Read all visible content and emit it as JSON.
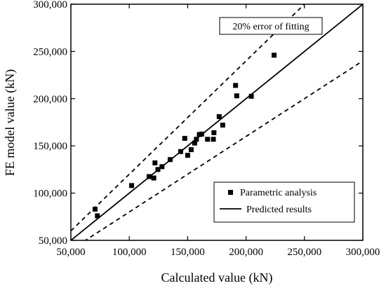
{
  "chart_data": {
    "type": "scatter",
    "xlabel": "Calculated value (kN)",
    "ylabel": "FE model value (kN)",
    "xlim": [
      50000,
      300000
    ],
    "ylim": [
      50000,
      300000
    ],
    "x_ticks": [
      50000,
      100000,
      150000,
      200000,
      250000,
      300000
    ],
    "y_ticks": [
      50000,
      100000,
      150000,
      200000,
      250000,
      300000
    ],
    "x_tick_labels": [
      "50,000",
      "100,000",
      "150,000",
      "200,000",
      "250,000",
      "300,000"
    ],
    "y_tick_labels": [
      "50,000",
      "100,000",
      "150,000",
      "200,000",
      "250,000",
      "300,000"
    ],
    "grid": false,
    "legend_position": "bottom-right",
    "annotation": "20% error of fitting",
    "series": [
      {
        "name": "Parametric analysis",
        "kind": "points",
        "marker": "square",
        "color": "#000000",
        "points": [
          [
            70700,
            83000
          ],
          [
            72700,
            76000
          ],
          [
            102000,
            108000
          ],
          [
            117000,
            117500
          ],
          [
            121000,
            116000
          ],
          [
            122000,
            132000
          ],
          [
            124500,
            125000
          ],
          [
            128000,
            128000
          ],
          [
            135000,
            135500
          ],
          [
            144000,
            144000
          ],
          [
            147500,
            158000
          ],
          [
            150000,
            140000
          ],
          [
            153000,
            146000
          ],
          [
            156000,
            153000
          ],
          [
            157500,
            157000
          ],
          [
            160000,
            162000
          ],
          [
            162000,
            162500
          ],
          [
            167000,
            157000
          ],
          [
            172000,
            157000
          ],
          [
            172500,
            164000
          ],
          [
            177000,
            181000
          ],
          [
            180000,
            172000
          ],
          [
            191000,
            214000
          ],
          [
            192000,
            203000
          ],
          [
            204500,
            202500
          ],
          [
            224000,
            246000
          ]
        ]
      },
      {
        "name": "Predicted results",
        "kind": "line",
        "style": "solid",
        "color": "#000000",
        "points": [
          [
            50000,
            50000
          ],
          [
            300000,
            300000
          ]
        ]
      },
      {
        "kind": "line",
        "style": "dashed",
        "color": "#000000",
        "points": [
          [
            50000,
            60000
          ],
          [
            250000,
            300000
          ]
        ]
      },
      {
        "kind": "line",
        "style": "dashed",
        "color": "#000000",
        "points": [
          [
            50000,
            40000
          ],
          [
            300000,
            240000
          ]
        ]
      }
    ]
  }
}
